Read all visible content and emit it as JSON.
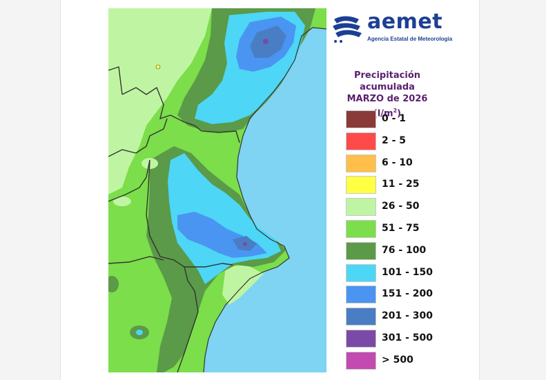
{
  "logo": {
    "name": "aemet",
    "subtitle": "Agencia Estatal de Meteorología",
    "brand_color": "#1c3f95"
  },
  "legend": {
    "title_line1": "Precipitación acumulada",
    "title_line2": "MARZO de 2026",
    "unit_prefix": "(l/m",
    "unit_exp": "2",
    "unit_suffix": ")",
    "title_color": "#5a1f6e",
    "items": [
      {
        "label": "0 - 1",
        "color": "#8b3a3a"
      },
      {
        "label": "2 - 5",
        "color": "#ff4a4a"
      },
      {
        "label": "6 - 10",
        "color": "#ffbf4a"
      },
      {
        "label": "11 - 25",
        "color": "#ffff44"
      },
      {
        "label": "26 - 50",
        "color": "#bff5a2"
      },
      {
        "label": "51 - 75",
        "color": "#7bde4a"
      },
      {
        "label": "76 - 100",
        "color": "#5a9a48"
      },
      {
        "label": "101 - 150",
        "color": "#4dd6f5"
      },
      {
        "label": "151 - 200",
        "color": "#4a95f2"
      },
      {
        "label": "201 - 300",
        "color": "#4a7ec4"
      },
      {
        "label": "301 - 500",
        "color": "#7b4aa6"
      },
      {
        "label": "> 500",
        "color": "#c24ab0"
      }
    ]
  },
  "map": {
    "sea_color": "#7ed4f2",
    "land_color": "#7bde4a"
  }
}
